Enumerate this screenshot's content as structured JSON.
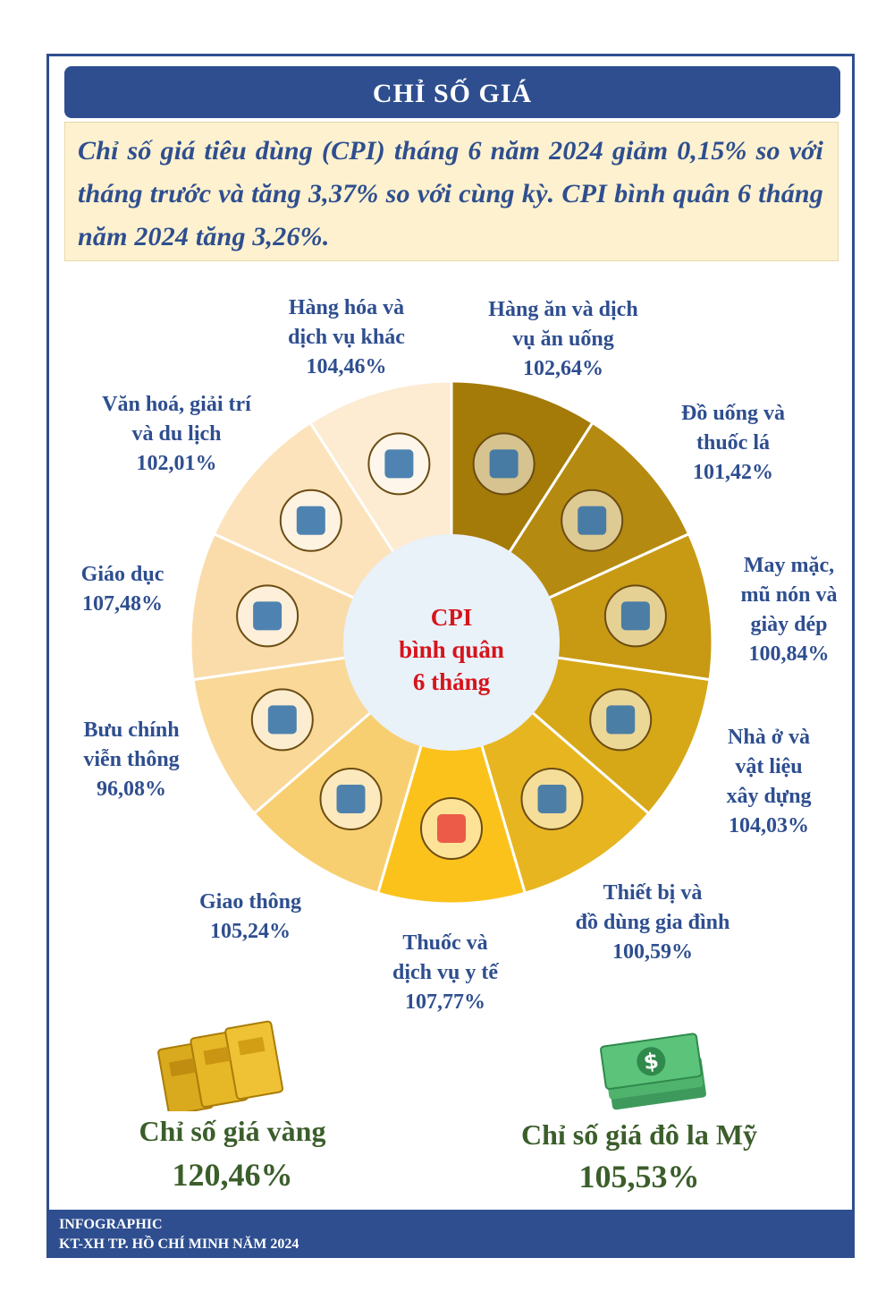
{
  "title": "CHỈ SỐ GIÁ",
  "summary": "Chỉ số giá tiêu dùng (CPI) tháng 6 năm 2024 giảm 0,15% so với tháng trước và tăng 3,37% so với cùng kỳ. CPI bình quân 6 tháng năm 2024 tăng 3,26%.",
  "center": {
    "line1": "CPI",
    "line2": "bình quân",
    "line3": "6 tháng"
  },
  "chart_data": {
    "type": "pie",
    "title": "",
    "categories": [
      "Hàng ăn và dịch vụ ăn uống",
      "Đồ uống và thuốc lá",
      "May mặc, mũ nón và giày dép",
      "Nhà ở và vật liệu xây dựng",
      "Thiết bị và đồ dùng gia đình",
      "Thuốc và dịch vụ y tế",
      "Giao thông",
      "Bưu chính viễn thông",
      "Giáo dục",
      "Văn hoá, giải trí và du lịch",
      "Hàng hóa và dịch vụ khác"
    ],
    "values": [
      102.64,
      101.42,
      100.84,
      104.03,
      100.59,
      107.77,
      105.24,
      96.08,
      107.48,
      102.01,
      104.46
    ],
    "value_labels": [
      "102,64%",
      "101,42%",
      "100,84%",
      "104,03%",
      "100,59%",
      "107,77%",
      "105,24%",
      "96,08%",
      "107,48%",
      "102,01%",
      "104,46%"
    ],
    "unit": "%",
    "colors": [
      "#a47a08",
      "#b58a10",
      "#c89a14",
      "#d6a818",
      "#e7b520",
      "#fbc21c",
      "#f8cf70",
      "#f9d898",
      "#fadcab",
      "#fce3bc",
      "#fdebd2"
    ],
    "icons": [
      "food-drink-icon",
      "cigarette-pack-icon",
      "clothing-icon",
      "house-materials-icon",
      "appliances-icon",
      "medicine-icon",
      "bus-icon",
      "delivery-scooter-icon",
      "newspaper-abc-icon",
      "microphone-music-icon",
      "check-cross-icon"
    ]
  },
  "labels": [
    {
      "lines": [
        "Hàng ăn và dịch",
        "vụ ăn uống"
      ]
    },
    {
      "lines": [
        "Đồ uống và",
        "thuốc lá"
      ]
    },
    {
      "lines": [
        "May mặc,",
        "mũ nón và",
        "giày dép"
      ]
    },
    {
      "lines": [
        "Nhà ở và",
        "vật liệu",
        "xây dựng"
      ]
    },
    {
      "lines": [
        "Thiết bị và",
        "đồ dùng gia đình"
      ]
    },
    {
      "lines": [
        "Thuốc và",
        "dịch vụ y tế"
      ]
    },
    {
      "lines": [
        "Giao thông"
      ]
    },
    {
      "lines": [
        "Bưu chính",
        "viễn thông"
      ]
    },
    {
      "lines": [
        "Giáo dục"
      ]
    },
    {
      "lines": [
        "Văn hoá, giải trí",
        "và du lịch"
      ]
    },
    {
      "lines": [
        "Hàng hóa và",
        "dịch vụ khác"
      ]
    }
  ],
  "gold": {
    "name": "Chỉ số giá vàng",
    "value": "120,46%",
    "icon": "gold-bars-icon",
    "color": "#3b5e2b"
  },
  "usd": {
    "name": "Chỉ số giá đô la Mỹ",
    "value": "105,53%",
    "icon": "dollar-bills-icon",
    "color": "#3b5e2b"
  },
  "footer": {
    "line1": "INFOGRAPHIC",
    "line2": "KT-XH TP. HỒ CHÍ MINH NĂM 2024"
  },
  "theme": {
    "primary": "#2e4e8f",
    "highlight_bg": "#fdf1cf",
    "center_text": "#d6141b"
  }
}
